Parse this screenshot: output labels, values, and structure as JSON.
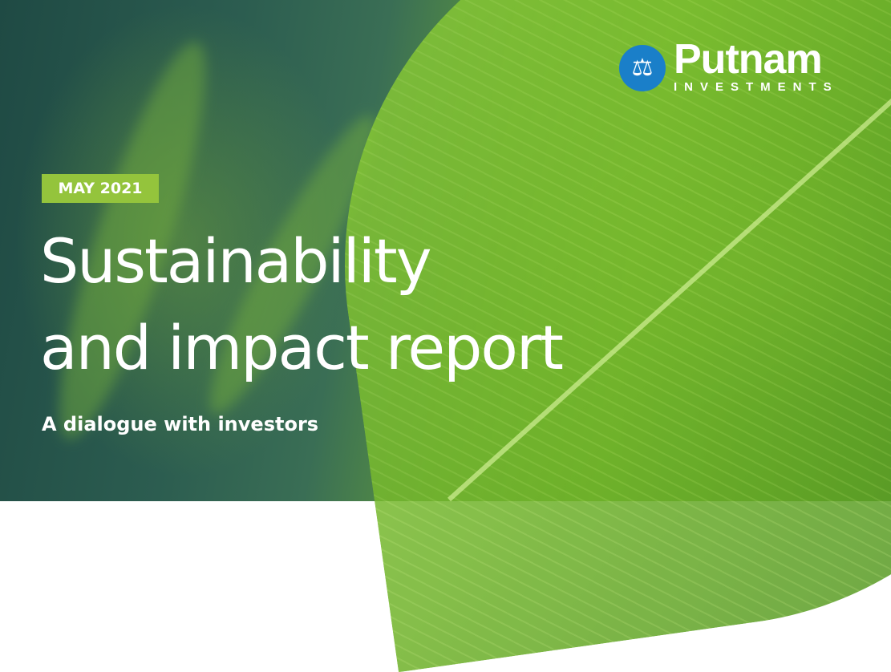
{
  "logo": {
    "name": "Putnam",
    "tagline": "INVESTMENTS",
    "icon": "scales-of-justice-icon",
    "circle_color": "#1a7fc9"
  },
  "cover": {
    "date_badge": "MAY 2021",
    "badge_color": "#94c43c",
    "title_line1": "Sustainability",
    "title_line2": "and impact report",
    "subtitle": "A dialogue with investors"
  }
}
